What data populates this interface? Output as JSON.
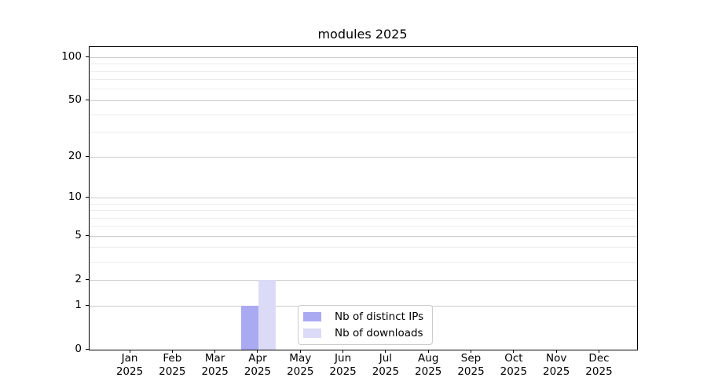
{
  "chart_data": {
    "type": "bar",
    "title": "modules 2025",
    "categories": [
      "Jan 2025",
      "Feb 2025",
      "Mar 2025",
      "Apr 2025",
      "May 2025",
      "Jun 2025",
      "Jul 2025",
      "Aug 2025",
      "Sep 2025",
      "Oct 2025",
      "Nov 2025",
      "Dec 2025"
    ],
    "x_tick_months": [
      "Jan",
      "Feb",
      "Mar",
      "Apr",
      "May",
      "Jun",
      "Jul",
      "Aug",
      "Sep",
      "Oct",
      "Nov",
      "Dec"
    ],
    "x_tick_year": "2025",
    "series": [
      {
        "name": "Nb of distinct IPs",
        "key": "distinct-ips",
        "color": "#aaaaf2",
        "values": [
          0,
          0,
          0,
          1,
          0,
          0,
          0,
          0,
          0,
          0,
          0,
          0
        ]
      },
      {
        "name": "Nb of downloads",
        "key": "downloads",
        "color": "#dbdbf7",
        "values": [
          0,
          0,
          0,
          2,
          0,
          0,
          0,
          0,
          0,
          0,
          0,
          0
        ]
      }
    ],
    "yaxis": {
      "scale": "log1p",
      "major_ticks": [
        0,
        1,
        2,
        5,
        10,
        20,
        50,
        100
      ],
      "minor_ticks": [
        3,
        4,
        6,
        7,
        8,
        9,
        30,
        40,
        60,
        70,
        80,
        90
      ],
      "ylim": [
        0,
        116
      ]
    },
    "xlabel": "",
    "ylabel": "",
    "grid": "horizontal",
    "legend_position": "lower center",
    "colors": {
      "grid_major": "#cccccc",
      "grid_minor": "#ededed",
      "axis": "#000000",
      "background": "#ffffff"
    }
  }
}
